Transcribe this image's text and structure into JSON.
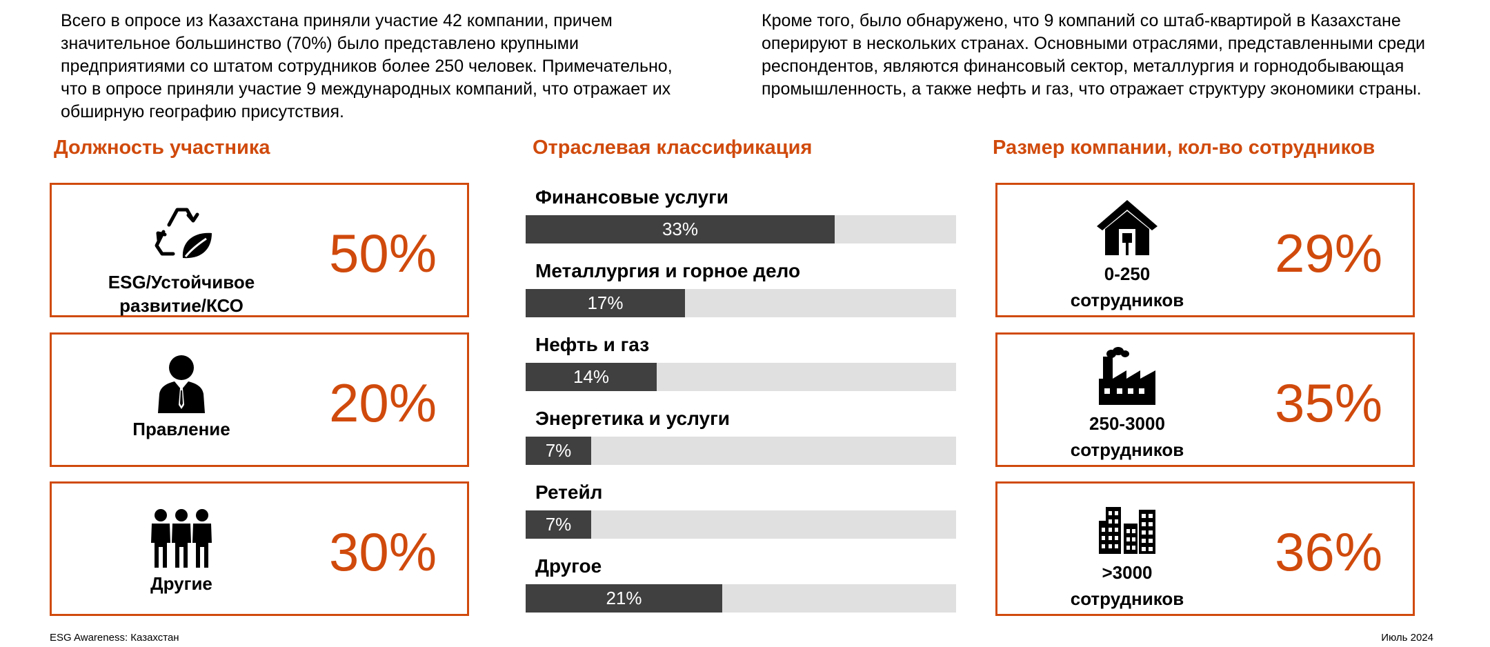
{
  "intro": {
    "left": "Всего в опросе из Казахстана приняли участие 42 компании, причем значительное большинство (70%) было представлено крупными предприятиями со штатом сотрудников более 250 человек. Примечательно, что в опросе приняли участие 9 международных компаний, что отражает их обширную географию присутствия.",
    "right": "Кроме того, было обнаружено, что 9 компаний со штаб-квартирой в Казахстане оперируют в нескольких странах. Основными отраслями, представленными среди респондентов, являются финансовый сектор, металлургия и горнодобывающая промышленность, а также нефть и газ, что отражает структуру экономики страны."
  },
  "sections": {
    "position": "Должность участника",
    "industry": "Отраслевая классификация",
    "size": "Размер компании, кол-во сотрудников"
  },
  "position_cards": [
    {
      "label_line1": "ESG/Устойчивое",
      "label_line2": "развитие/КСО",
      "value": "50%",
      "icon": "recycle-leaf-icon"
    },
    {
      "label_line1": "Правление",
      "label_line2": "",
      "value": "20%",
      "icon": "businessman-icon"
    },
    {
      "label_line1": "Другие",
      "label_line2": "",
      "value": "30%",
      "icon": "group-people-icon"
    }
  ],
  "size_cards": [
    {
      "label_line1": "0-250",
      "label_line2": "сотрудников",
      "value": "29%",
      "icon": "house-icon"
    },
    {
      "label_line1": "250-3000",
      "label_line2": "сотрудников",
      "value": "35%",
      "icon": "factory-icon"
    },
    {
      "label_line1": ">3000",
      "label_line2": "сотрудников",
      "value": "36%",
      "icon": "city-buildings-icon"
    }
  ],
  "chart_data": [
    {
      "type": "bar",
      "orientation": "horizontal",
      "title": "Отраслевая классификация",
      "categories": [
        "Финансовые услуги",
        "Металлургия и горное дело",
        "Нефть и газ",
        "Энергетика и услуги",
        "Ретейл",
        "Другое"
      ],
      "values": [
        33,
        17,
        14,
        7,
        7,
        21
      ],
      "value_labels": [
        "33%",
        "17%",
        "14%",
        "7%",
        "7%",
        "21%"
      ],
      "xlim": [
        0,
        46
      ],
      "colors": {
        "bar": "#404040",
        "track": "#e0e0e0"
      }
    },
    {
      "type": "table",
      "title": "Должность участника",
      "categories": [
        "ESG/Устойчивое развитие/КСО",
        "Правление",
        "Другие"
      ],
      "values": [
        50,
        20,
        30
      ]
    },
    {
      "type": "table",
      "title": "Размер компании, кол-во сотрудников",
      "categories": [
        "0-250 сотрудников",
        "250-3000 сотрудников",
        ">3000 сотрудников"
      ],
      "values": [
        29,
        35,
        36
      ]
    }
  ],
  "colors": {
    "accent": "#d04a0c",
    "bar": "#404040",
    "track": "#e0e0e0"
  },
  "footer": {
    "left": "ESG Awareness: Казахстан",
    "right": "Июль 2024"
  }
}
